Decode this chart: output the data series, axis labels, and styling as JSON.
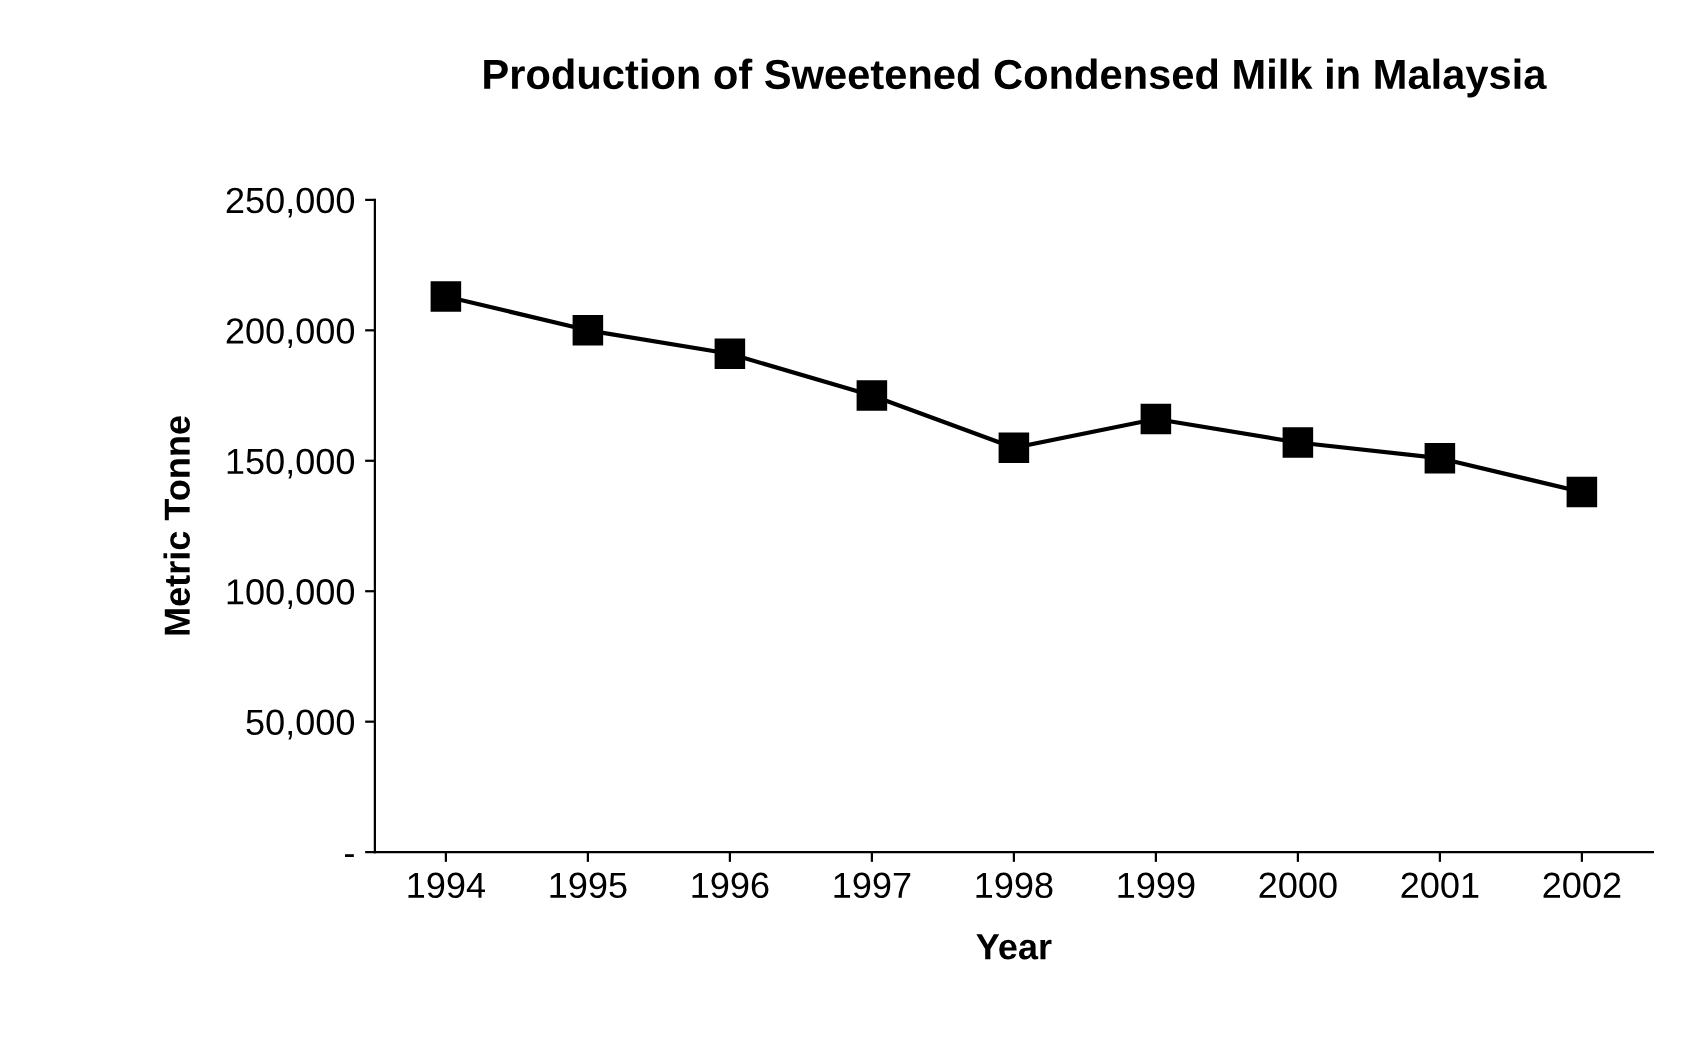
{
  "chart_data": {
    "type": "line",
    "title": "Production of Sweetened Condensed Milk in Malaysia",
    "xlabel": "Year",
    "ylabel": "Metric Tonne",
    "categories": [
      "1994",
      "1995",
      "1996",
      "1997",
      "1998",
      "1999",
      "2000",
      "2001",
      "2002"
    ],
    "series": [
      {
        "color": "#000000",
        "values": [
          213000,
          200000,
          191000,
          175000,
          155000,
          166000,
          157000,
          151000,
          138000
        ]
      }
    ],
    "ylim": [
      0,
      250000
    ],
    "yticks": [
      {
        "value": 0,
        "label": "-"
      },
      {
        "value": 50000,
        "label": "50,000"
      },
      {
        "value": 100000,
        "label": "100,000"
      },
      {
        "value": 150000,
        "label": "150,000"
      },
      {
        "value": 200000,
        "label": "200,000"
      },
      {
        "value": 250000,
        "label": "250,000"
      }
    ],
    "grid": false,
    "marker": "square",
    "line_style": "solid"
  }
}
